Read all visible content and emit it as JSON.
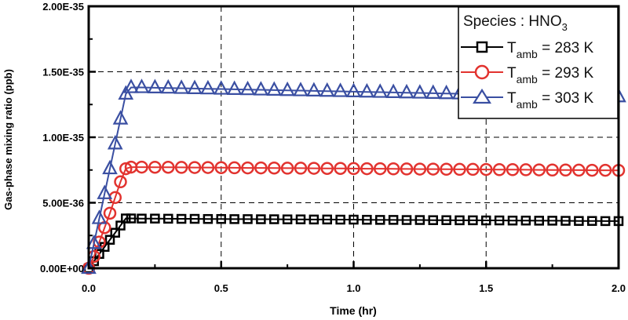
{
  "chart_data": {
    "type": "line",
    "title": "",
    "xlabel": "Time (hr)",
    "ylabel": "Gas-phase mixing ratio (ppb)",
    "xlim": [
      0,
      2.0
    ],
    "ylim": [
      0,
      2e-35
    ],
    "xticks": [
      "0.0",
      "0.5",
      "1.0",
      "1.5",
      "2.0"
    ],
    "yticks": [
      "0.00E+00",
      "5.00E-36",
      "1.00E-35",
      "1.50E-35",
      "2.00E-35"
    ],
    "grid": true,
    "legend_position": "top-right",
    "legend_title": {
      "main": "Species : HNO",
      "sub": "3"
    },
    "x": [
      0,
      0.02,
      0.04,
      0.06,
      0.08,
      0.1,
      0.12,
      0.14,
      0.16,
      0.2,
      0.25,
      0.3,
      0.35,
      0.4,
      0.45,
      0.5,
      0.55,
      0.6,
      0.65,
      0.7,
      0.75,
      0.8,
      0.85,
      0.9,
      0.95,
      1.0,
      1.05,
      1.1,
      1.15,
      1.2,
      1.25,
      1.3,
      1.35,
      1.4,
      1.45,
      1.5,
      1.55,
      1.6,
      1.65,
      1.7,
      1.75,
      1.8,
      1.85,
      1.9,
      1.95,
      2.0
    ],
    "series": [
      {
        "name": {
          "T": "T",
          "sub": "amb",
          "rest": " = 283 K"
        },
        "color": "#000000",
        "marker": "square",
        "values": [
          0,
          5.4e-37,
          1.09e-36,
          1.63e-36,
          2.17e-36,
          2.71e-36,
          3.26e-36,
          3.8e-36,
          3.8e-36,
          3.79e-36,
          3.79e-36,
          3.78e-36,
          3.77e-36,
          3.77e-36,
          3.76e-36,
          3.76e-36,
          3.75e-36,
          3.75e-36,
          3.74e-36,
          3.74e-36,
          3.73e-36,
          3.73e-36,
          3.72e-36,
          3.72e-36,
          3.71e-36,
          3.71e-36,
          3.7e-36,
          3.69e-36,
          3.69e-36,
          3.68e-36,
          3.68e-36,
          3.67e-36,
          3.67e-36,
          3.66e-36,
          3.66e-36,
          3.65e-36,
          3.65e-36,
          3.64e-36,
          3.64e-36,
          3.63e-36,
          3.63e-36,
          3.62e-36,
          3.61e-36,
          3.61e-36,
          3.6e-36,
          3.6e-36
        ]
      },
      {
        "name": {
          "T": "T",
          "sub": "amb",
          "rest": " = 293 K"
        },
        "color": "#e2332f",
        "marker": "circle",
        "values": [
          0,
          9e-37,
          2e-36,
          3.1e-36,
          4.2e-36,
          5.4e-36,
          6.6e-36,
          7.6e-36,
          7.72e-36,
          7.72e-36,
          7.71e-36,
          7.71e-36,
          7.7e-36,
          7.69e-36,
          7.69e-36,
          7.68e-36,
          7.67e-36,
          7.66e-36,
          7.66e-36,
          7.65e-36,
          7.64e-36,
          7.64e-36,
          7.63e-36,
          7.62e-36,
          7.62e-36,
          7.61e-36,
          7.6e-36,
          7.6e-36,
          7.59e-36,
          7.58e-36,
          7.57e-36,
          7.57e-36,
          7.56e-36,
          7.55e-36,
          7.55e-36,
          7.54e-36,
          7.53e-36,
          7.53e-36,
          7.52e-36,
          7.51e-36,
          7.5e-36,
          7.5e-36,
          7.49e-36,
          7.48e-36,
          7.48e-36,
          7.47e-36
        ]
      },
      {
        "name": {
          "T": "T",
          "sub": "amb",
          "rest": " = 303 K"
        },
        "color": "#3a4fa2",
        "marker": "triangle",
        "values": [
          0,
          1.9e-36,
          3.8e-36,
          5.7e-36,
          7.6e-36,
          9.5e-36,
          1.14e-35,
          1.33e-35,
          1.38e-35,
          1.38e-35,
          1.378e-35,
          1.376e-35,
          1.374e-35,
          1.372e-35,
          1.37e-35,
          1.368e-35,
          1.366e-35,
          1.364e-35,
          1.362e-35,
          1.36e-35,
          1.358e-35,
          1.356e-35,
          1.354e-35,
          1.352e-35,
          1.35e-35,
          1.348e-35,
          1.346e-35,
          1.344e-35,
          1.342e-35,
          1.34e-35,
          1.338e-35,
          1.336e-35,
          1.334e-35,
          1.332e-35,
          1.33e-35,
          1.328e-35,
          1.326e-35,
          1.324e-35,
          1.322e-35,
          1.32e-35,
          1.318e-35,
          1.316e-35,
          1.314e-35,
          1.312e-35,
          1.311e-35,
          1.31e-35
        ]
      }
    ]
  }
}
